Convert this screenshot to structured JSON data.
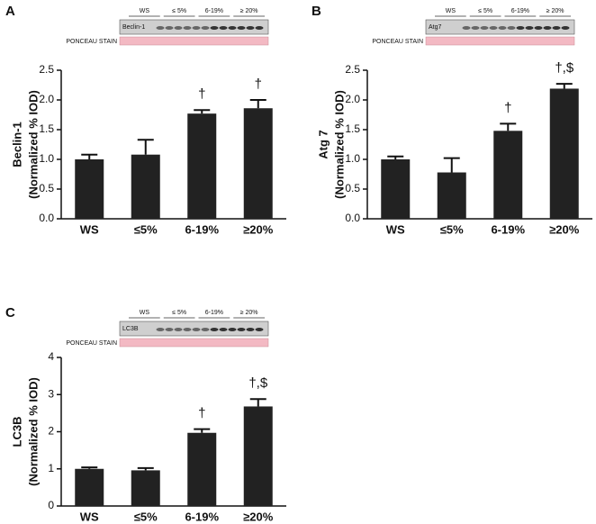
{
  "chart_data": [
    {
      "type": "bar",
      "panel": "A",
      "ylabel": "Beclin-1",
      "ylabel2": "(Normalized % IOD)",
      "categories": [
        "WS",
        "≤5%",
        "6-19%",
        "≥20%"
      ],
      "values": [
        1.0,
        1.08,
        1.77,
        1.86
      ],
      "errors": [
        0.08,
        0.25,
        0.06,
        0.14
      ],
      "color": "#222222",
      "ylim": [
        0,
        2.5
      ],
      "yticks": [
        {
          "value": 0,
          "label": "0.0"
        },
        {
          "value": 0.5,
          "label": "0.5"
        },
        {
          "value": 1,
          "label": "1.0"
        },
        {
          "value": 1.5,
          "label": "1.5"
        },
        {
          "value": 2,
          "label": "2.0"
        },
        {
          "value": 2.5,
          "label": "2.5"
        }
      ],
      "annotations": [
        {
          "category": "6-19%",
          "text": "†"
        },
        {
          "category": "≥20%",
          "text": "†"
        }
      ],
      "blot": {
        "label": "Beclin-1",
        "stain": "PONCEAU STAIN",
        "groups": [
          "WS",
          "≤ 5%",
          "6-19%",
          "≥ 20%"
        ]
      }
    },
    {
      "type": "bar",
      "panel": "B",
      "ylabel": "Atg 7",
      "ylabel2": "(Normalized % IOD)",
      "categories": [
        "WS",
        "≤5%",
        "6-19%",
        "≥20%"
      ],
      "values": [
        1.0,
        0.78,
        1.48,
        2.19
      ],
      "errors": [
        0.05,
        0.24,
        0.12,
        0.08
      ],
      "color": "#222222",
      "ylim": [
        0,
        2.5
      ],
      "yticks": [
        {
          "value": 0,
          "label": "0.0"
        },
        {
          "value": 0.5,
          "label": "0.5"
        },
        {
          "value": 1,
          "label": "1.0"
        },
        {
          "value": 1.5,
          "label": "1.5"
        },
        {
          "value": 2,
          "label": "2.0"
        },
        {
          "value": 2.5,
          "label": "2.5"
        }
      ],
      "annotations": [
        {
          "category": "6-19%",
          "text": "†"
        },
        {
          "category": "≥20%",
          "text": "†,$"
        }
      ],
      "blot": {
        "label": "Atg7",
        "stain": "PONCEAU STAIN",
        "groups": [
          "WS",
          "≤ 5%",
          "6-19%",
          "≥ 20%"
        ]
      }
    },
    {
      "type": "bar",
      "panel": "C",
      "ylabel": "LC3B",
      "ylabel2": "(Normalized % IOD)",
      "categories": [
        "WS",
        "≤5%",
        "6-19%",
        "≥20%"
      ],
      "values": [
        1.0,
        0.96,
        1.97,
        2.68
      ],
      "errors": [
        0.04,
        0.06,
        0.1,
        0.2
      ],
      "color": "#222222",
      "ylim": [
        0,
        4
      ],
      "yticks": [
        0,
        1,
        2,
        3,
        4
      ],
      "annotations": [
        {
          "category": "6-19%",
          "text": "†"
        },
        {
          "category": "≥20%",
          "text": "†,$"
        }
      ],
      "blot": {
        "label": "LC3B",
        "stain": "PONCEAU STAIN",
        "groups": [
          "WS",
          "≤ 5%",
          "6-19%",
          "≥ 20%"
        ]
      }
    }
  ]
}
